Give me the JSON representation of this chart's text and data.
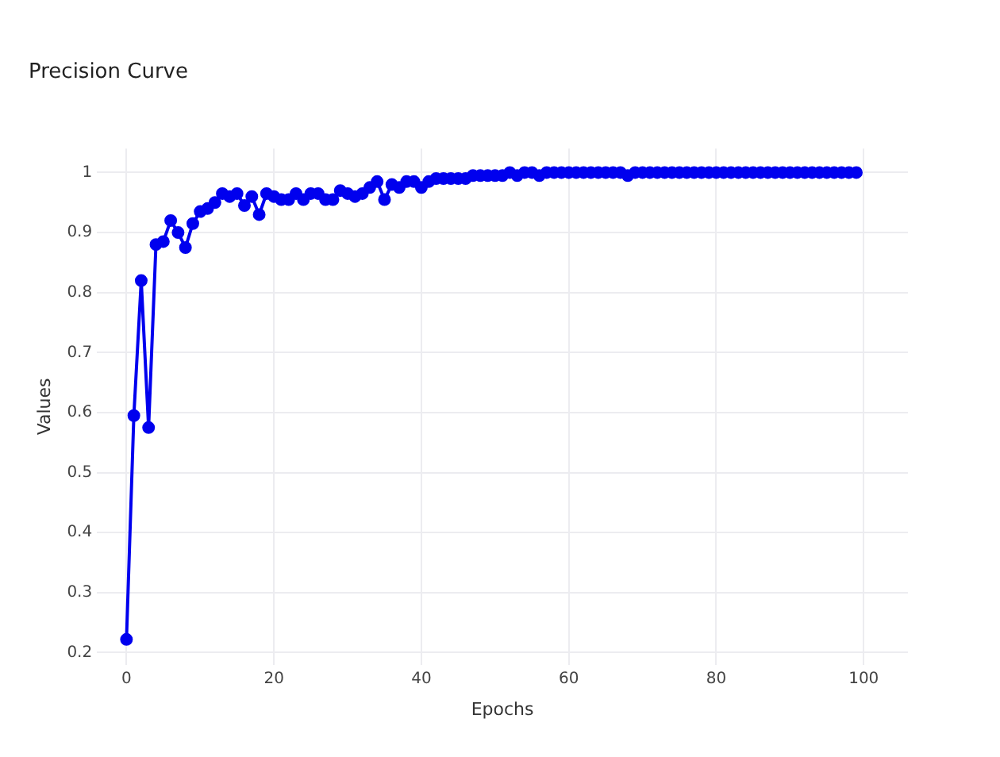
{
  "chart_data": {
    "type": "line",
    "title": "Precision Curve",
    "xlabel": "Epochs",
    "ylabel": "Values",
    "x": [
      0,
      1,
      2,
      3,
      4,
      5,
      6,
      7,
      8,
      9,
      10,
      11,
      12,
      13,
      14,
      15,
      16,
      17,
      18,
      19,
      20,
      21,
      22,
      23,
      24,
      25,
      26,
      27,
      28,
      29,
      30,
      31,
      32,
      33,
      34,
      35,
      36,
      37,
      38,
      39,
      40,
      41,
      42,
      43,
      44,
      45,
      46,
      47,
      48,
      49,
      50,
      51,
      52,
      53,
      54,
      55,
      56,
      57,
      58,
      59,
      60,
      61,
      62,
      63,
      64,
      65,
      66,
      67,
      68,
      69,
      70,
      71,
      72,
      73,
      74,
      75,
      76,
      77,
      78,
      79,
      80,
      81,
      82,
      83,
      84,
      85,
      86,
      87,
      88,
      89,
      90,
      91,
      92,
      93,
      94,
      95,
      96,
      97,
      98,
      99
    ],
    "series": [
      {
        "color": "#0000ee",
        "values": [
          0.222,
          0.595,
          0.82,
          0.575,
          0.88,
          0.885,
          0.92,
          0.9,
          0.875,
          0.915,
          0.935,
          0.94,
          0.95,
          0.965,
          0.96,
          0.965,
          0.945,
          0.96,
          0.93,
          0.965,
          0.96,
          0.955,
          0.955,
          0.965,
          0.955,
          0.965,
          0.965,
          0.955,
          0.955,
          0.97,
          0.965,
          0.96,
          0.965,
          0.975,
          0.985,
          0.955,
          0.98,
          0.975,
          0.985,
          0.985,
          0.975,
          0.985,
          0.99,
          0.99,
          0.99,
          0.99,
          0.99,
          0.995,
          0.995,
          0.995,
          0.995,
          0.995,
          1,
          0.995,
          1,
          1,
          0.995,
          1,
          1,
          1,
          1,
          1,
          1,
          1,
          1,
          1,
          1,
          1,
          0.995,
          1,
          1,
          1,
          1,
          1,
          1,
          1,
          1,
          1,
          1,
          1,
          1,
          1,
          1,
          1,
          1,
          1,
          1,
          1,
          1,
          1,
          1,
          1,
          1,
          1,
          1,
          1,
          1,
          1,
          1,
          1
        ]
      }
    ],
    "xlim": [
      -4,
      106
    ],
    "xticks": [
      0,
      20,
      40,
      60,
      80,
      100
    ],
    "ylim": [
      0.18,
      1.04
    ],
    "yticks": [
      0.2,
      0.3,
      0.4,
      0.5,
      0.6,
      0.7,
      0.8,
      0.9,
      1
    ],
    "grid": true,
    "marker": "circle",
    "line_style": "solid"
  }
}
